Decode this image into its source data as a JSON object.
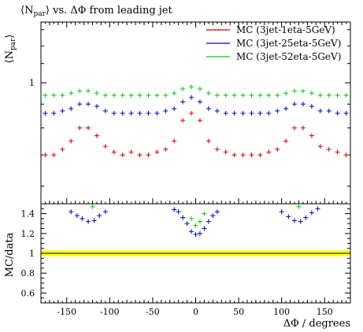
{
  "chart_data": [
    {
      "type": "scatter",
      "title": "⟨N_par⟩ vs. ΔΦ from leading jet",
      "title_parts": {
        "pre": "⟨N",
        "sub": "par",
        "post": "⟩ vs. ΔΦ from leading jet"
      },
      "ylabel": "⟨N_par⟩",
      "ylabel_parts": {
        "pre": "⟨N",
        "sub": "par",
        "post": "⟩"
      },
      "xlabel": "",
      "xlim": [
        -180,
        180
      ],
      "ylog": true,
      "ylim": [
        0.55,
        1.35
      ],
      "yticks": [
        1
      ],
      "ytick_labels": [
        "1"
      ],
      "legend_position": "top-right",
      "x": [
        -175,
        -165,
        -155,
        -145,
        -135,
        -125,
        -115,
        -105,
        -95,
        -85,
        -75,
        -65,
        -55,
        -45,
        -35,
        -25,
        -15,
        -5,
        5,
        15,
        25,
        35,
        45,
        55,
        65,
        75,
        85,
        95,
        105,
        115,
        125,
        135,
        145,
        155,
        165,
        175
      ],
      "series": [
        {
          "name": "MC (3jet-1eta-5GeV)",
          "color": "#cc0000",
          "values": [
            0.7,
            0.7,
            0.72,
            0.75,
            0.8,
            0.8,
            0.77,
            0.73,
            0.71,
            0.7,
            0.71,
            0.7,
            0.7,
            0.71,
            0.72,
            0.75,
            0.83,
            0.86,
            0.83,
            0.75,
            0.72,
            0.71,
            0.7,
            0.7,
            0.7,
            0.7,
            0.71,
            0.72,
            0.75,
            0.8,
            0.8,
            0.77,
            0.73,
            0.72,
            0.71,
            0.7
          ]
        },
        {
          "name": "MC (3jet-25eta-5GeV)",
          "color": "#0000cc",
          "values": [
            0.86,
            0.86,
            0.87,
            0.88,
            0.9,
            0.9,
            0.89,
            0.87,
            0.86,
            0.86,
            0.86,
            0.86,
            0.86,
            0.86,
            0.87,
            0.88,
            0.91,
            0.93,
            0.91,
            0.88,
            0.87,
            0.86,
            0.86,
            0.86,
            0.86,
            0.86,
            0.86,
            0.87,
            0.88,
            0.9,
            0.9,
            0.89,
            0.87,
            0.87,
            0.86,
            0.86
          ]
        },
        {
          "name": "MC (3jet-52eta-5GeV)",
          "color": "#00cc00",
          "values": [
            0.94,
            0.94,
            0.94,
            0.95,
            0.96,
            0.96,
            0.95,
            0.94,
            0.94,
            0.94,
            0.94,
            0.94,
            0.94,
            0.94,
            0.94,
            0.95,
            0.97,
            0.98,
            0.97,
            0.95,
            0.94,
            0.94,
            0.94,
            0.94,
            0.94,
            0.94,
            0.94,
            0.94,
            0.95,
            0.96,
            0.96,
            0.95,
            0.94,
            0.94,
            0.94,
            0.94
          ]
        }
      ]
    },
    {
      "type": "scatter",
      "ylabel": "MC/data",
      "xlabel": "ΔΦ / degrees",
      "xlim": [
        -180,
        180
      ],
      "ylim": [
        0.5,
        1.5
      ],
      "xticks": [
        -150,
        -100,
        -50,
        0,
        50,
        100,
        150
      ],
      "xtick_labels": [
        "-150",
        "-100",
        "-50",
        "0",
        "50",
        "100",
        "150"
      ],
      "yticks": [
        0.6,
        0.8,
        1,
        1.2,
        1.4
      ],
      "ytick_labels": [
        "0.6",
        "0.8",
        "1",
        "1.2",
        "1.4"
      ],
      "band": {
        "color": "#ffff00",
        "low": 0.97,
        "high": 1.03,
        "reference": 1
      },
      "points": [
        {
          "x": -145,
          "y": 1.42,
          "color": "#0000cc"
        },
        {
          "x": -138,
          "y": 1.38,
          "color": "#0000cc"
        },
        {
          "x": -132,
          "y": 1.35,
          "color": "#0000cc"
        },
        {
          "x": -125,
          "y": 1.32,
          "color": "#0000cc"
        },
        {
          "x": -118,
          "y": 1.33,
          "color": "#0000cc"
        },
        {
          "x": -112,
          "y": 1.38,
          "color": "#0000cc"
        },
        {
          "x": -105,
          "y": 1.42,
          "color": "#0000cc"
        },
        {
          "x": -25,
          "y": 1.44,
          "color": "#0000cc"
        },
        {
          "x": -20,
          "y": 1.42,
          "color": "#0000cc"
        },
        {
          "x": -15,
          "y": 1.36,
          "color": "#0000cc"
        },
        {
          "x": -10,
          "y": 1.3,
          "color": "#0000cc"
        },
        {
          "x": -5,
          "y": 1.22,
          "color": "#0000cc"
        },
        {
          "x": 0,
          "y": 1.19,
          "color": "#0000cc"
        },
        {
          "x": 5,
          "y": 1.2,
          "color": "#0000cc"
        },
        {
          "x": 10,
          "y": 1.25,
          "color": "#0000cc"
        },
        {
          "x": 15,
          "y": 1.32,
          "color": "#0000cc"
        },
        {
          "x": 20,
          "y": 1.38,
          "color": "#0000cc"
        },
        {
          "x": 25,
          "y": 1.42,
          "color": "#0000cc"
        },
        {
          "x": 100,
          "y": 1.42,
          "color": "#0000cc"
        },
        {
          "x": 108,
          "y": 1.37,
          "color": "#0000cc"
        },
        {
          "x": 115,
          "y": 1.33,
          "color": "#0000cc"
        },
        {
          "x": 122,
          "y": 1.32,
          "color": "#0000cc"
        },
        {
          "x": 128,
          "y": 1.36,
          "color": "#0000cc"
        },
        {
          "x": 135,
          "y": 1.41,
          "color": "#0000cc"
        },
        {
          "x": 142,
          "y": 1.45,
          "color": "#0000cc"
        },
        {
          "x": -120,
          "y": 1.47,
          "color": "#00cc00"
        },
        {
          "x": -5,
          "y": 1.35,
          "color": "#00cc00"
        },
        {
          "x": 0,
          "y": 1.28,
          "color": "#00cc00"
        },
        {
          "x": 5,
          "y": 1.32,
          "color": "#00cc00"
        },
        {
          "x": 10,
          "y": 1.4,
          "color": "#00cc00"
        },
        {
          "x": 120,
          "y": 1.47,
          "color": "#00cc00"
        }
      ]
    }
  ]
}
